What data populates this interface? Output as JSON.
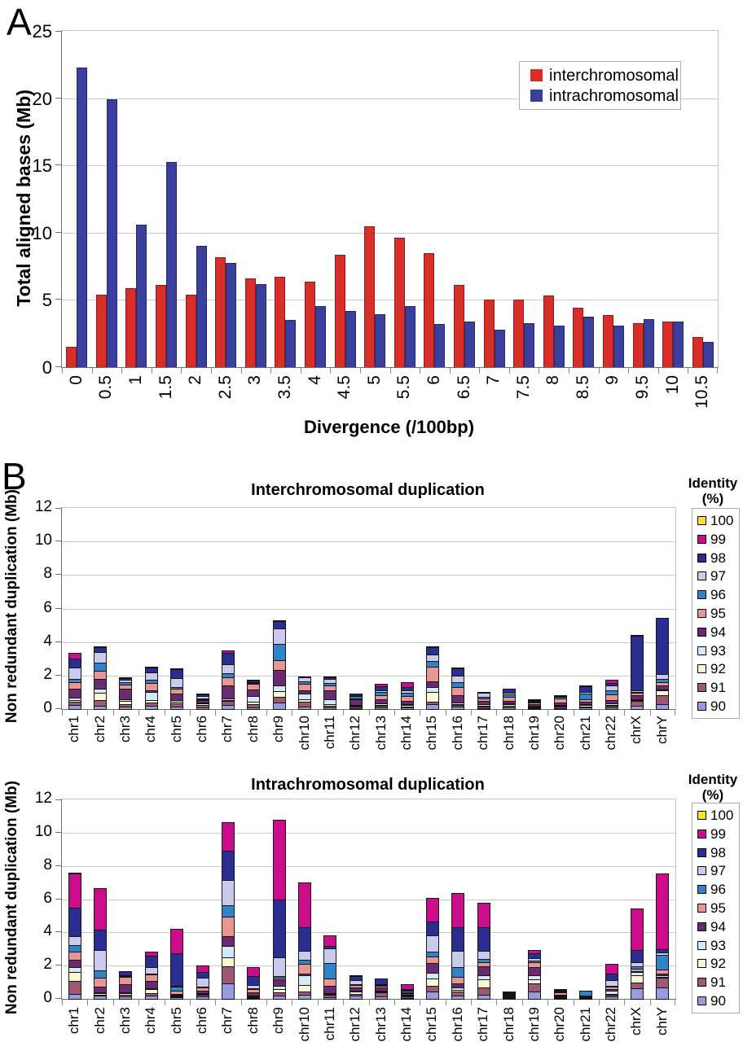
{
  "figure": {
    "panel_a_label": "A",
    "panel_b_label": "B"
  },
  "colors": {
    "interchromosomal": "#d92d27",
    "intrachromosomal": "#3a3f9e",
    "gridline": "#c9c9c9"
  },
  "identity_colors": {
    "100": "#f5e32e",
    "99": "#cb0d8c",
    "98": "#2b2e91",
    "97": "#c9caec",
    "96": "#2f83c6",
    "95": "#e99693",
    "94": "#6a2a70",
    "93": "#d2eaf8",
    "92": "#fbf9d4",
    "91": "#9d5873",
    "90": "#989bdf"
  },
  "chart_data": [
    {
      "id": "divergence",
      "type": "bar",
      "title": "",
      "xlabel": "Divergence (/100bp)",
      "ylabel": "Total aligned bases (Mb)",
      "ylim": [
        0,
        25
      ],
      "ytick_step": 5,
      "grid": true,
      "legend_position": "top-right-inside",
      "categories": [
        "0",
        "0.5",
        "1",
        "1.5",
        "2",
        "2.5",
        "3",
        "3.5",
        "4",
        "4.5",
        "5",
        "5.5",
        "6",
        "6.5",
        "7",
        "7.5",
        "8",
        "8.5",
        "9",
        "9.5",
        "10",
        "10.5"
      ],
      "series": [
        {
          "name": "interchromosomal",
          "color": "#d92d27",
          "values": [
            1.5,
            5.4,
            5.9,
            6.1,
            5.4,
            8.2,
            6.6,
            6.75,
            6.35,
            8.35,
            10.5,
            9.65,
            8.45,
            6.1,
            5.05,
            5.05,
            5.3,
            4.45,
            3.9,
            3.25,
            3.4,
            2.25
          ]
        },
        {
          "name": "intrachromosomal",
          "color": "#3a3f9e",
          "values": [
            22.3,
            19.9,
            10.6,
            15.25,
            9.0,
            7.75,
            6.15,
            3.5,
            4.55,
            4.15,
            3.95,
            4.55,
            3.2,
            3.4,
            2.8,
            3.25,
            3.1,
            3.75,
            3.1,
            3.6,
            3.4,
            1.85
          ]
        }
      ]
    },
    {
      "id": "interchromosomal_duplication",
      "type": "stacked-bar",
      "title": "Interchromosomal duplication",
      "ylabel": "Non redundant duplication (Mb)",
      "legend_title_line1": "Identity",
      "legend_title_line2": "(%)",
      "ylim": [
        0,
        12
      ],
      "ytick_step": 2,
      "grid": true,
      "legend_position": "right-outside",
      "categories": [
        "chr1",
        "chr2",
        "chr3",
        "chr4",
        "chr5",
        "chr6",
        "chr7",
        "chr8",
        "chr9",
        "chr10",
        "chr11",
        "chr12",
        "chr13",
        "chr14",
        "chr15",
        "chr16",
        "chr17",
        "chr18",
        "chr19",
        "chr20",
        "chr21",
        "chr22",
        "chrX",
        "chrY"
      ],
      "series": [
        {
          "name": "90",
          "color": "#989bdf",
          "values": [
            0.3,
            0.25,
            0.2,
            0.25,
            0.2,
            0.15,
            0.3,
            0.15,
            0.45,
            0.2,
            0.15,
            0.1,
            0.15,
            0.15,
            0.35,
            0.2,
            0.1,
            0.15,
            0.1,
            0.1,
            0.15,
            0.15,
            0.25,
            0.35
          ]
        },
        {
          "name": "91",
          "color": "#9d5873",
          "values": [
            0.25,
            0.4,
            0.2,
            0.25,
            0.25,
            0.2,
            0.3,
            0.25,
            0.4,
            0.35,
            0.15,
            0.15,
            0.15,
            0.1,
            0.2,
            0.15,
            0.15,
            0.15,
            0.1,
            0.15,
            0.1,
            0.15,
            0.35,
            0.55
          ]
        },
        {
          "name": "92",
          "color": "#fbf9d4",
          "values": [
            0.15,
            0.45,
            0.25,
            0.2,
            0.15,
            0.15,
            0.1,
            0.2,
            0.35,
            0.2,
            0.15,
            0.1,
            0.1,
            0.15,
            0.6,
            0.1,
            0.1,
            0.15,
            0.05,
            0.1,
            0.15,
            0.1,
            0.1,
            0.35
          ]
        },
        {
          "name": "93",
          "color": "#d2eaf8",
          "values": [
            0.2,
            0.3,
            0.15,
            0.5,
            0.15,
            0.1,
            0.15,
            0.35,
            0.4,
            0.35,
            0.35,
            0.1,
            0.15,
            0.1,
            0.35,
            0.15,
            0.15,
            0.1,
            0.1,
            0.1,
            0.1,
            0.15,
            0.1,
            0.1
          ]
        },
        {
          "name": "94",
          "color": "#6a2a70",
          "values": [
            0.55,
            0.65,
            0.65,
            0.15,
            0.4,
            0.2,
            0.8,
            0.45,
            1.0,
            0.25,
            0.55,
            0.4,
            0.3,
            0.25,
            0.4,
            0.45,
            0.25,
            0.2,
            0.15,
            0.2,
            0.2,
            0.25,
            0.25,
            0.3
          ]
        },
        {
          "name": "95",
          "color": "#e99693",
          "values": [
            0.45,
            0.55,
            0.3,
            0.5,
            0.35,
            0.1,
            0.55,
            0.4,
            0.6,
            0.45,
            0.35,
            0.1,
            0.25,
            0.3,
            0.9,
            0.55,
            0.2,
            0.25,
            0.15,
            0.3,
            0.2,
            0.35,
            0.2,
            0.25
          ]
        },
        {
          "name": "96",
          "color": "#2f83c6",
          "values": [
            0.25,
            0.5,
            0.2,
            0.25,
            0.15,
            0.05,
            0.3,
            0.1,
            1.05,
            0.2,
            0.2,
            0.15,
            0.25,
            0.25,
            0.4,
            0.35,
            0.1,
            0.2,
            0.1,
            0.1,
            0.35,
            0.3,
            0.1,
            0.25
          ]
        },
        {
          "name": "97",
          "color": "#c9caec",
          "values": [
            0.7,
            0.7,
            0.2,
            0.5,
            0.6,
            0.15,
            0.55,
            0.1,
            0.95,
            0.3,
            0.3,
            0.1,
            0.15,
            0.2,
            0.45,
            0.45,
            0.3,
            0.15,
            0.05,
            0.1,
            0.15,
            0.35,
            0.15,
            0.35
          ]
        },
        {
          "name": "98",
          "color": "#2b2e91",
          "values": [
            0.6,
            0.35,
            0.15,
            0.3,
            0.55,
            0.15,
            0.75,
            0.15,
            0.5,
            0.1,
            0.15,
            0.15,
            0.3,
            0.25,
            0.5,
            0.45,
            0.1,
            0.3,
            0.1,
            0.1,
            0.4,
            0.2,
            3.3,
            3.4
          ]
        },
        {
          "name": "99",
          "color": "#cb0d8c",
          "values": [
            0.4,
            0.1,
            0.05,
            0.05,
            0.05,
            0.05,
            0.2,
            0.05,
            0.1,
            0,
            0.05,
            0,
            0.2,
            0.35,
            0.1,
            0.1,
            0,
            0,
            0.1,
            0,
            0.05,
            0.25,
            0.05,
            0
          ]
        },
        {
          "name": "100",
          "color": "#f5e32e",
          "values": [
            0,
            0,
            0,
            0,
            0,
            0,
            0,
            0,
            0,
            0,
            0,
            0,
            0,
            0,
            0,
            0,
            0,
            0,
            0,
            0,
            0,
            0,
            0,
            0
          ]
        }
      ]
    },
    {
      "id": "intrachromosomal_duplication",
      "type": "stacked-bar",
      "title": "Intrachromosomal duplication",
      "ylabel": "Non redundant duplication (Mb)",
      "legend_title_line1": "Identity",
      "legend_title_line2": "(%)",
      "ylim": [
        0,
        12
      ],
      "ytick_step": 2,
      "grid": true,
      "legend_position": "right-outside",
      "categories": [
        "chr1",
        "chr2",
        "chr3",
        "chr4",
        "chr5",
        "chr6",
        "chr7",
        "chr8",
        "chr9",
        "chr10",
        "chr11",
        "chr12",
        "chr13",
        "chr14",
        "chr15",
        "chr16",
        "chr17",
        "chr18",
        "chr19",
        "chr20",
        "chr21",
        "chr22",
        "chrX",
        "chrY"
      ],
      "series": [
        {
          "name": "90",
          "color": "#989bdf",
          "values": [
            0.35,
            0.25,
            0.2,
            0.25,
            0.15,
            0.2,
            1.0,
            0.1,
            0.25,
            0.3,
            0.15,
            0.25,
            0.2,
            0.1,
            0.5,
            0.25,
            0.3,
            0.1,
            0.5,
            0.1,
            0.05,
            0.2,
            0.7,
            0.75
          ]
        },
        {
          "name": "91",
          "color": "#9d5873",
          "values": [
            0.85,
            0.1,
            0.15,
            0.2,
            0.1,
            0.15,
            1.05,
            0.1,
            0.25,
            0.25,
            0.2,
            0.15,
            0.3,
            0.15,
            0.4,
            0.3,
            0.5,
            0.05,
            0.55,
            0.1,
            0.05,
            0.15,
            0.4,
            0.6
          ]
        },
        {
          "name": "92",
          "color": "#fbf9d4",
          "values": [
            0.55,
            0.15,
            0.15,
            0.3,
            0.1,
            0.1,
            0.6,
            0.1,
            0.25,
            0.45,
            0.1,
            0.2,
            0.1,
            0.05,
            0.45,
            0.15,
            0.5,
            0.05,
            0.25,
            0.05,
            0.05,
            0.1,
            0.45,
            0.1
          ]
        },
        {
          "name": "93",
          "color": "#d2eaf8",
          "values": [
            0.35,
            0.1,
            0.1,
            0.1,
            0.1,
            0.1,
            0.75,
            0.05,
            0.25,
            0.6,
            0.1,
            0.1,
            0.1,
            0.1,
            0.4,
            0.2,
            0.3,
            0.05,
            0.3,
            0.05,
            0,
            0.25,
            0.25,
            0.15
          ]
        },
        {
          "name": "94",
          "color": "#6a2a70",
          "values": [
            0.5,
            0.4,
            0.55,
            0.45,
            0.1,
            0.2,
            0.6,
            0.25,
            0.4,
            0.15,
            0.5,
            0.25,
            0.25,
            0.15,
            0.65,
            0.3,
            0.6,
            0.05,
            0.55,
            0.1,
            0,
            0.15,
            0.1,
            0.15
          ]
        },
        {
          "name": "95",
          "color": "#e99693",
          "values": [
            0.55,
            0.55,
            0.45,
            0.45,
            0.25,
            0.25,
            1.25,
            0.25,
            0.15,
            0.65,
            0.45,
            0.2,
            0.15,
            0.1,
            0.45,
            0.4,
            0.3,
            0.05,
            0.35,
            0.2,
            0.05,
            0.2,
            0.2,
            0.3
          ]
        },
        {
          "name": "96",
          "color": "#2f83c6",
          "values": [
            0.45,
            0.5,
            0.05,
            0.1,
            0.3,
            0.1,
            0.75,
            0.1,
            0.15,
            0.3,
            1.0,
            0.1,
            0.1,
            0.15,
            0.35,
            0.65,
            0.25,
            0.05,
            0.15,
            0.05,
            0.35,
            0.1,
            0.2,
            0.95
          ]
        },
        {
          "name": "97",
          "color": "#c9caec",
          "values": [
            0.55,
            1.3,
            0.1,
            0.45,
            0.1,
            0.55,
            1.55,
            0.25,
            1.2,
            0.6,
            0.95,
            0.25,
            0.1,
            0.05,
            1.0,
            1.05,
            0.55,
            0.05,
            0.2,
            0.05,
            0,
            0.35,
            0.3,
            0.2
          ]
        },
        {
          "name": "98",
          "color": "#2b2e91",
          "values": [
            1.8,
            1.25,
            0.3,
            0.75,
            2.0,
            0.4,
            1.8,
            0.55,
            3.5,
            1.45,
            0.2,
            0.3,
            0.35,
            0.1,
            0.9,
            1.45,
            1.45,
            0.05,
            0.35,
            0.05,
            0,
            0.45,
            0.8,
            0.25
          ]
        },
        {
          "name": "99",
          "color": "#cb0d8c",
          "values": [
            2.1,
            2.55,
            0,
            0.3,
            1.5,
            0.45,
            1.75,
            0.6,
            4.85,
            2.75,
            0.65,
            0.1,
            0,
            0.35,
            1.45,
            2.1,
            1.5,
            0,
            0.25,
            0.05,
            0,
            0.65,
            2.55,
            4.6
          ]
        },
        {
          "name": "100",
          "color": "#f5e32e",
          "values": [
            0.1,
            0,
            0,
            0,
            0,
            0,
            0,
            0,
            0,
            0,
            0,
            0,
            0,
            0,
            0,
            0,
            0,
            0,
            0,
            0,
            0,
            0,
            0,
            0
          ]
        }
      ]
    }
  ]
}
